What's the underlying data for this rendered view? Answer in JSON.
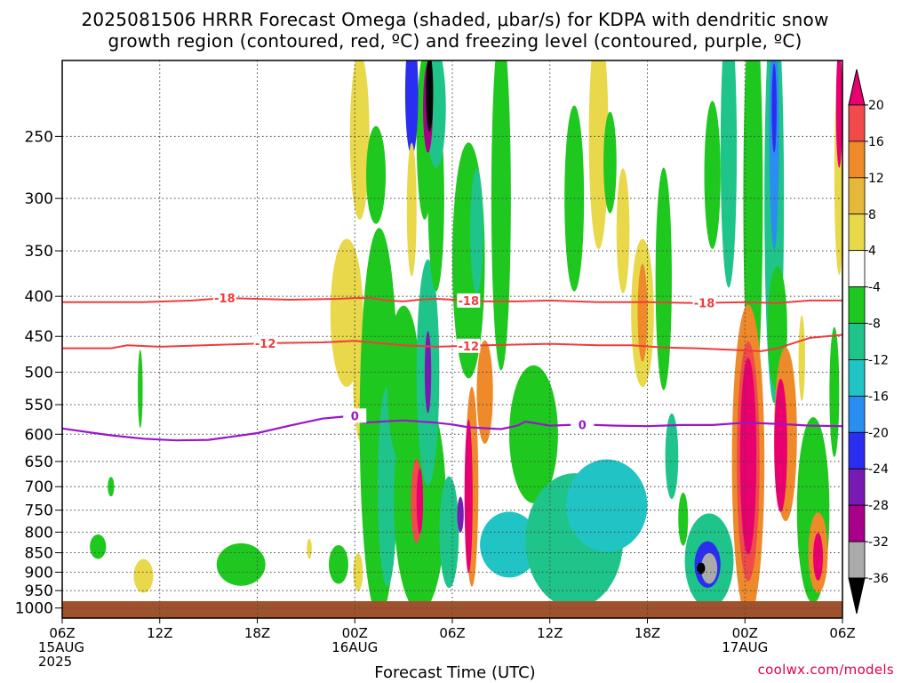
{
  "title_line1": "2025081506 HRRR Forecast Omega (shaded, μbar/s) for KDPA with dendritic snow",
  "title_line2": "growth region (contoured, red, ºC) and freezing level (contoured, purple, ºC)",
  "xlabel": "Forecast Time (UTC)",
  "credit": "coolwx.com/models",
  "chart_data": {
    "type": "heatmap",
    "title": "2025081506 HRRR Forecast Omega (shaded, μbar/s) for KDPA with dendritic snow growth region (contoured, red, ºC) and freezing level (contoured, purple, ºC)",
    "xlabel": "Forecast Time (UTC)",
    "ylabel": "",
    "x_range_hours": [
      0,
      48
    ],
    "y_levels_hpa": [
      250,
      300,
      350,
      400,
      450,
      500,
      550,
      600,
      650,
      700,
      750,
      800,
      850,
      900,
      950,
      1000
    ],
    "y_range_hpa": [
      200,
      1030
    ],
    "y_scale": "log",
    "grid": true,
    "x_ticks": [
      {
        "h": 0,
        "lines": [
          "06Z",
          "15AUG",
          "2025"
        ]
      },
      {
        "h": 6,
        "lines": [
          "12Z"
        ]
      },
      {
        "h": 12,
        "lines": [
          "18Z"
        ]
      },
      {
        "h": 18,
        "lines": [
          "00Z",
          "16AUG"
        ]
      },
      {
        "h": 24,
        "lines": [
          "06Z"
        ]
      },
      {
        "h": 30,
        "lines": [
          "12Z"
        ]
      },
      {
        "h": 36,
        "lines": [
          "18Z"
        ]
      },
      {
        "h": 42,
        "lines": [
          "00Z",
          "17AUG"
        ]
      },
      {
        "h": 48,
        "lines": [
          "06Z"
        ]
      }
    ],
    "colorbar": {
      "labels": [
        "20",
        "16",
        "12",
        "8",
        "4",
        "-4",
        "-8",
        "-12",
        "-16",
        "-20",
        "-24",
        "-28",
        "-32",
        "-36"
      ],
      "colors": [
        "#e8006e",
        "#f04a4a",
        "#ee8a2a",
        "#e6b83a",
        "#e8d84a",
        "#ffffff",
        "#1ec81e",
        "#1fc48a",
        "#21c4c4",
        "#2a8ef0",
        "#2a2ef0",
        "#7a1ab4",
        "#a8008a",
        "#aaaaaa",
        "#000000"
      ]
    },
    "omega_blobs": [
      {
        "h": 5.0,
        "p": 910,
        "rx": 0.6,
        "ry": 45,
        "v": 5
      },
      {
        "h": 3.0,
        "p": 700,
        "rx": 0.2,
        "ry": 20,
        "v": -5
      },
      {
        "h": 2.2,
        "p": 835,
        "rx": 0.5,
        "ry": 30,
        "v": -5
      },
      {
        "h": 4.8,
        "p": 525,
        "rx": 0.15,
        "ry": 60,
        "v": -5
      },
      {
        "h": 11.0,
        "p": 880,
        "rx": 1.5,
        "ry": 55,
        "v": -5
      },
      {
        "h": 15.2,
        "p": 840,
        "rx": 0.15,
        "ry": 25,
        "v": 5
      },
      {
        "h": 17.0,
        "p": 880,
        "rx": 0.6,
        "ry": 50,
        "v": -5
      },
      {
        "h": 18.2,
        "p": 900,
        "rx": 0.3,
        "ry": 50,
        "v": 5
      },
      {
        "h": 17.5,
        "p": 420,
        "rx": 1.0,
        "ry": 90,
        "v": 5
      },
      {
        "h": 18.5,
        "p": 520,
        "rx": 0.6,
        "ry": 90,
        "v": 5
      },
      {
        "h": 18.3,
        "p": 250,
        "rx": 0.6,
        "ry": 60,
        "v": 5
      },
      {
        "h": 19.3,
        "p": 280,
        "rx": 0.6,
        "ry": 40,
        "v": -5
      },
      {
        "h": 19.5,
        "p": 580,
        "rx": 1.2,
        "ry": 300,
        "v": -6
      },
      {
        "h": 20.0,
        "p": 700,
        "rx": 0.6,
        "ry": 200,
        "v": -10
      },
      {
        "h": 21.0,
        "p": 520,
        "rx": 1.0,
        "ry": 120,
        "v": -6
      },
      {
        "h": 22.0,
        "p": 730,
        "rx": 1.6,
        "ry": 230,
        "v": -6
      },
      {
        "h": 22.5,
        "p": 500,
        "rx": 0.7,
        "ry": 160,
        "v": -8
      },
      {
        "h": 22.3,
        "p": 250,
        "rx": 0.5,
        "ry": 60,
        "v": -6
      },
      {
        "h": 23.0,
        "p": 300,
        "rx": 0.5,
        "ry": 80,
        "v": -6
      },
      {
        "h": 23.0,
        "p": 230,
        "rx": 0.6,
        "ry": 40,
        "v": -10
      },
      {
        "h": 21.5,
        "p": 220,
        "rx": 0.4,
        "ry": 40,
        "v": -20
      },
      {
        "h": 22.5,
        "p": 230,
        "rx": 0.3,
        "ry": 30,
        "v": -28
      },
      {
        "h": 22.6,
        "p": 220,
        "rx": 0.22,
        "ry": 25,
        "v": -36
      },
      {
        "h": 21.5,
        "p": 310,
        "rx": 0.3,
        "ry": 60,
        "v": 5
      },
      {
        "h": 21.8,
        "p": 730,
        "rx": 0.35,
        "ry": 90,
        "v": 14
      },
      {
        "h": 22.0,
        "p": 730,
        "rx": 0.2,
        "ry": 70,
        "v": 22
      },
      {
        "h": 22.5,
        "p": 500,
        "rx": 0.2,
        "ry": 60,
        "v": -24
      },
      {
        "h": 23.8,
        "p": 800,
        "rx": 0.6,
        "ry": 130,
        "v": -10
      },
      {
        "h": 24.5,
        "p": 760,
        "rx": 0.2,
        "ry": 40,
        "v": -26
      },
      {
        "h": 25.0,
        "p": 360,
        "rx": 1.0,
        "ry": 120,
        "v": -6
      },
      {
        "h": 25.2,
        "p": 700,
        "rx": 0.4,
        "ry": 200,
        "v": 10
      },
      {
        "h": 25.0,
        "p": 720,
        "rx": 0.25,
        "ry": 160,
        "v": 22
      },
      {
        "h": 26.0,
        "p": 530,
        "rx": 0.5,
        "ry": 80,
        "v": 10
      },
      {
        "h": 25.5,
        "p": 330,
        "rx": 0.4,
        "ry": 60,
        "v": -8
      },
      {
        "h": 27.0,
        "p": 300,
        "rx": 0.6,
        "ry": 140,
        "v": -6
      },
      {
        "h": 27.5,
        "p": 830,
        "rx": 1.8,
        "ry": 80,
        "v": -12
      },
      {
        "h": 29.0,
        "p": 600,
        "rx": 1.5,
        "ry": 120,
        "v": -6
      },
      {
        "h": 31.5,
        "p": 820,
        "rx": 3.0,
        "ry": 160,
        "v": -8
      },
      {
        "h": 33.5,
        "p": 740,
        "rx": 2.5,
        "ry": 100,
        "v": -14
      },
      {
        "h": 31.5,
        "p": 300,
        "rx": 0.6,
        "ry": 80,
        "v": -6
      },
      {
        "h": 33.0,
        "p": 250,
        "rx": 0.6,
        "ry": 80,
        "v": 5
      },
      {
        "h": 33.7,
        "p": 270,
        "rx": 0.4,
        "ry": 40,
        "v": -6
      },
      {
        "h": 34.5,
        "p": 330,
        "rx": 0.4,
        "ry": 60,
        "v": 5
      },
      {
        "h": 35.7,
        "p": 420,
        "rx": 0.7,
        "ry": 90,
        "v": 5
      },
      {
        "h": 35.7,
        "p": 420,
        "rx": 0.3,
        "ry": 60,
        "v": 12
      },
      {
        "h": 37.0,
        "p": 380,
        "rx": 0.5,
        "ry": 120,
        "v": -6
      },
      {
        "h": 37.5,
        "p": 640,
        "rx": 0.4,
        "ry": 80,
        "v": -8
      },
      {
        "h": 38.2,
        "p": 770,
        "rx": 0.3,
        "ry": 60,
        "v": -6
      },
      {
        "h": 39.8,
        "p": 870,
        "rx": 1.5,
        "ry": 120,
        "v": -10
      },
      {
        "h": 39.7,
        "p": 880,
        "rx": 0.8,
        "ry": 60,
        "v": -22
      },
      {
        "h": 39.8,
        "p": 890,
        "rx": 0.5,
        "ry": 40,
        "v": -32
      },
      {
        "h": 39.3,
        "p": 890,
        "rx": 0.25,
        "ry": 15,
        "v": -34
      },
      {
        "h": 40.0,
        "p": 280,
        "rx": 0.5,
        "ry": 60,
        "v": -6
      },
      {
        "h": 41.0,
        "p": 260,
        "rx": 0.5,
        "ry": 100,
        "v": -8
      },
      {
        "h": 42.5,
        "p": 300,
        "rx": 0.6,
        "ry": 200,
        "v": -6
      },
      {
        "h": 42.2,
        "p": 650,
        "rx": 1.0,
        "ry": 280,
        "v": 10
      },
      {
        "h": 42.2,
        "p": 650,
        "rx": 0.7,
        "ry": 220,
        "v": 16
      },
      {
        "h": 42.2,
        "p": 640,
        "rx": 0.5,
        "ry": 180,
        "v": 22
      },
      {
        "h": 43.8,
        "p": 300,
        "rx": 0.6,
        "ry": 200,
        "v": -8
      },
      {
        "h": 43.8,
        "p": 250,
        "rx": 0.3,
        "ry": 80,
        "v": -16
      },
      {
        "h": 43.8,
        "p": 230,
        "rx": 0.15,
        "ry": 30,
        "v": -20
      },
      {
        "h": 44.0,
        "p": 440,
        "rx": 0.6,
        "ry": 80,
        "v": -6
      },
      {
        "h": 44.5,
        "p": 600,
        "rx": 0.7,
        "ry": 150,
        "v": 10
      },
      {
        "h": 44.2,
        "p": 620,
        "rx": 0.4,
        "ry": 120,
        "v": 18
      },
      {
        "h": 45.5,
        "p": 480,
        "rx": 0.2,
        "ry": 60,
        "v": 5
      },
      {
        "h": 46.2,
        "p": 750,
        "rx": 1.0,
        "ry": 200,
        "v": -6
      },
      {
        "h": 46.5,
        "p": 850,
        "rx": 0.6,
        "ry": 100,
        "v": 10
      },
      {
        "h": 46.5,
        "p": 860,
        "rx": 0.3,
        "ry": 60,
        "v": 22
      },
      {
        "h": 47.5,
        "p": 530,
        "rx": 0.3,
        "ry": 100,
        "v": -6
      },
      {
        "h": 47.8,
        "p": 280,
        "rx": 0.3,
        "ry": 80,
        "v": 5
      },
      {
        "h": 47.8,
        "p": 230,
        "rx": 0.2,
        "ry": 40,
        "v": 20
      }
    ],
    "red_contours": [
      {
        "label": "-18",
        "label_positions_h": [
          10.0,
          25.0,
          39.5
        ],
        "points": [
          [
            0,
            407
          ],
          [
            5,
            407
          ],
          [
            8,
            405
          ],
          [
            10,
            402
          ],
          [
            14,
            404
          ],
          [
            17,
            403
          ],
          [
            18,
            402
          ],
          [
            19,
            402
          ],
          [
            20,
            405
          ],
          [
            21,
            406
          ],
          [
            22,
            404
          ],
          [
            23,
            403
          ],
          [
            24,
            404
          ],
          [
            26,
            406
          ],
          [
            28,
            406
          ],
          [
            30,
            405
          ],
          [
            33,
            407
          ],
          [
            36,
            407
          ],
          [
            39,
            408
          ],
          [
            42,
            407
          ],
          [
            44,
            408
          ],
          [
            46,
            405
          ],
          [
            48,
            405
          ]
        ]
      },
      {
        "label": "-12",
        "label_positions_h": [
          12.5,
          25.0
        ],
        "points": [
          [
            0,
            466
          ],
          [
            3,
            466
          ],
          [
            4,
            462
          ],
          [
            6,
            464
          ],
          [
            10,
            461
          ],
          [
            13,
            459
          ],
          [
            16,
            458
          ],
          [
            18,
            456
          ],
          [
            19,
            458
          ],
          [
            20,
            460
          ],
          [
            21,
            462
          ],
          [
            23,
            464
          ],
          [
            26,
            462
          ],
          [
            30,
            460
          ],
          [
            33,
            462
          ],
          [
            35,
            462
          ],
          [
            37,
            465
          ],
          [
            39,
            466
          ],
          [
            41,
            468
          ],
          [
            43,
            470
          ],
          [
            44,
            466
          ],
          [
            46,
            452
          ],
          [
            48,
            448
          ]
        ]
      }
    ],
    "purple_contour": {
      "label": "0",
      "label_positions_h": [
        18.0,
        32.0
      ],
      "points": [
        [
          0,
          590
        ],
        [
          2,
          598
        ],
        [
          3,
          602
        ],
        [
          5,
          608
        ],
        [
          7,
          611
        ],
        [
          9,
          610
        ],
        [
          10,
          606
        ],
        [
          12,
          598
        ],
        [
          14,
          585
        ],
        [
          16,
          573
        ],
        [
          18,
          568
        ],
        [
          18.5,
          580
        ],
        [
          21,
          576
        ],
        [
          23,
          580
        ],
        [
          24,
          583
        ],
        [
          25,
          588
        ],
        [
          27,
          591
        ],
        [
          28,
          585
        ],
        [
          28.5,
          578
        ],
        [
          30,
          585
        ],
        [
          32,
          583
        ],
        [
          34,
          585
        ],
        [
          36,
          586
        ],
        [
          38,
          584
        ],
        [
          40,
          584
        ],
        [
          42,
          580
        ],
        [
          44,
          582
        ],
        [
          46,
          585
        ],
        [
          48,
          586
        ]
      ]
    },
    "ground_pressure_hpa": 980
  }
}
